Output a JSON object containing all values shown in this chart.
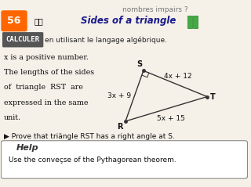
{
  "bg_color": "#f5f0e8",
  "top_text": "nombres impairs ?",
  "problem_num": "56",
  "problem_num_bg": "#ff6600",
  "title": "Sides of a triangle",
  "calculer_label": "CALCULER",
  "calculer_bg": "#555555",
  "subtitle": "en utilisant le langage algébrique.",
  "body_lines": [
    "x is a positive number.",
    "The lengths of the sides",
    "of  triangle  RST  are",
    "expressed in the same",
    "unit."
  ],
  "prove_text": "▶ Prove that triängle RST has a right angle at S.",
  "help_title": "Help",
  "help_body": "Use the conveçse of the Pythagorean theorem.",
  "triangle": {
    "R": [
      0.0,
      0.0
    ],
    "S": [
      0.18,
      0.72
    ],
    "T": [
      0.82,
      0.35
    ],
    "label_RS": "3x + 9",
    "label_ST": "4x + 12",
    "label_RT": "5x + 15",
    "color": "#333333"
  }
}
